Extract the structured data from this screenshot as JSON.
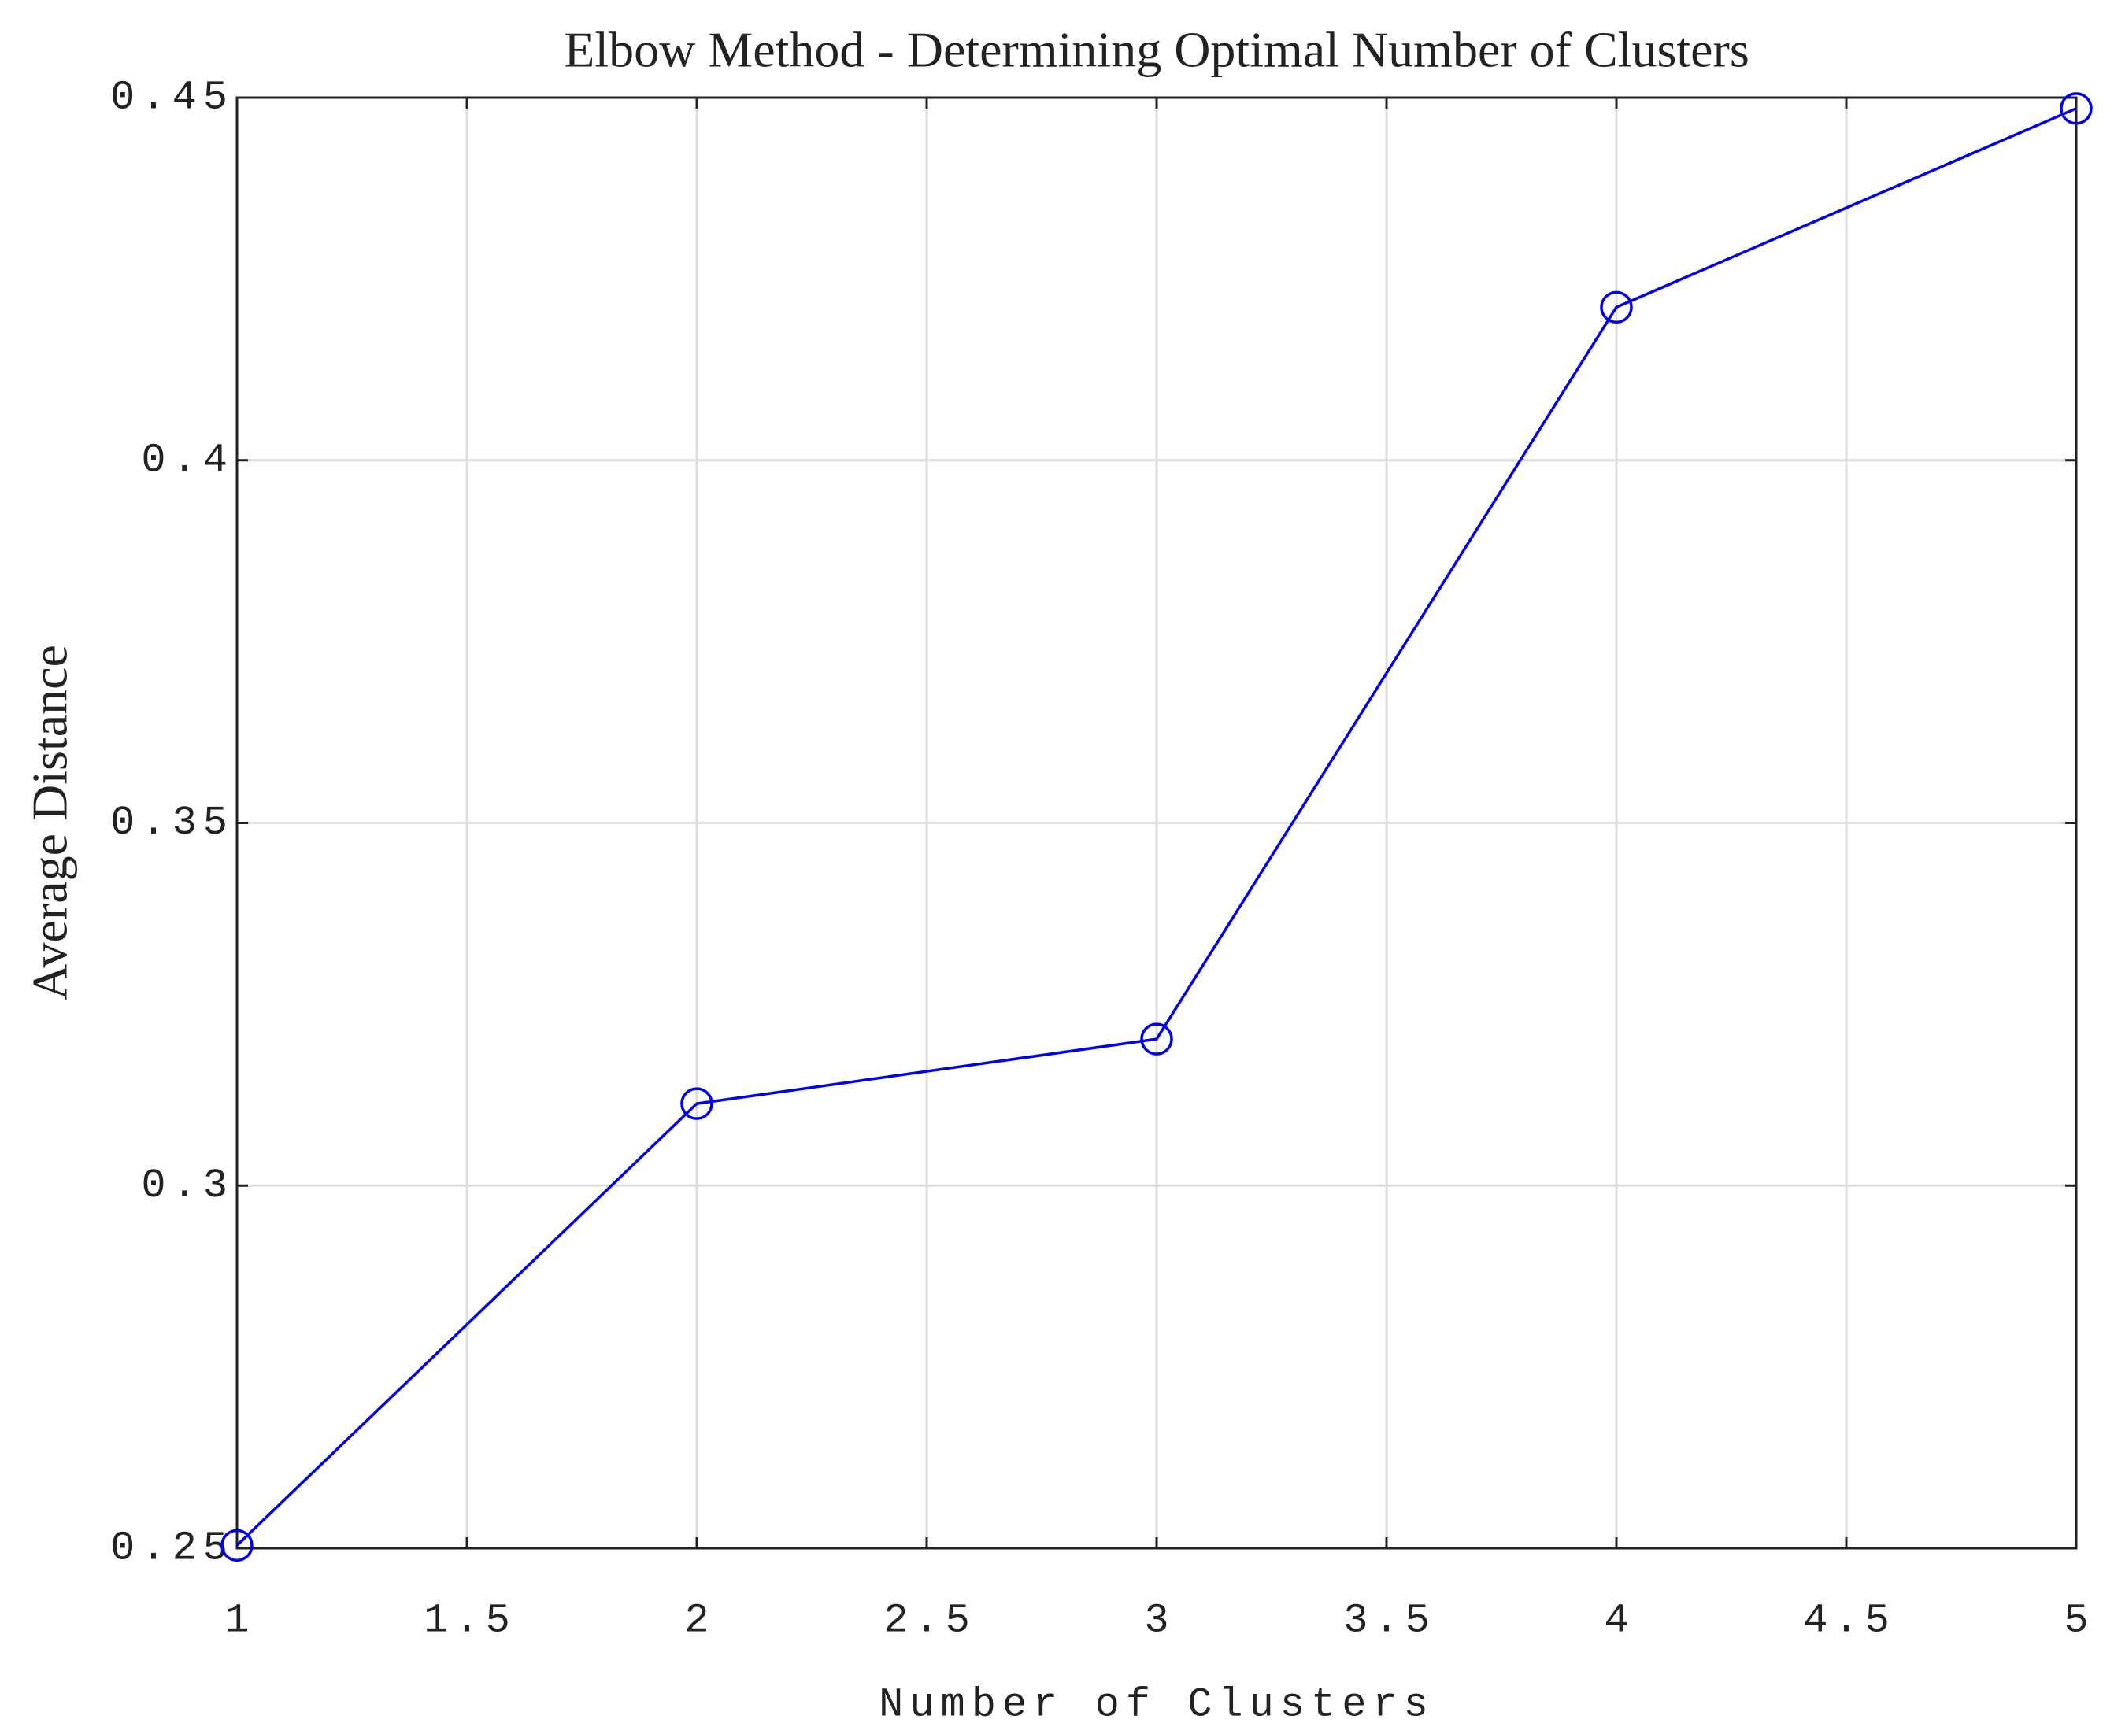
{
  "chart_data": {
    "type": "line",
    "title": "Elbow Method - Determining Optimal Number of Clusters",
    "xlabel": "Number of Clusters",
    "ylabel": "Average Distance",
    "x": [
      1,
      2,
      3,
      4,
      5
    ],
    "values": [
      0.2504,
      0.3113,
      0.3202,
      0.4211,
      0.4485
    ],
    "color": "#0000ee",
    "marker": "circle",
    "xlim": [
      1,
      5
    ],
    "xticks": [
      1,
      1.5,
      2,
      2.5,
      3,
      3.5,
      4,
      4.5,
      5
    ],
    "ylim": [
      0.25,
      0.45
    ],
    "yticks": [
      0.25,
      0.3,
      0.35,
      0.4,
      0.45
    ],
    "grid": true
  }
}
